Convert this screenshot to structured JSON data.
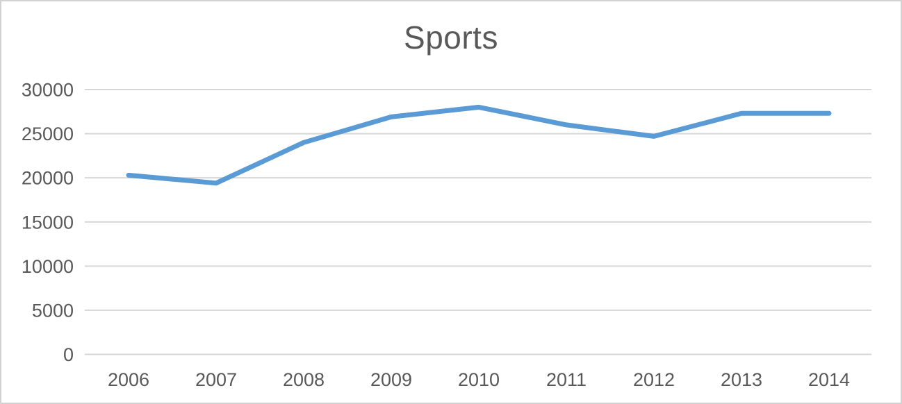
{
  "window": {
    "background": "#ffffff",
    "border_color": "#d2d2d2"
  },
  "chart_data": {
    "type": "line",
    "title": "Sports",
    "categories": [
      "2006",
      "2007",
      "2008",
      "2009",
      "2010",
      "2011",
      "2012",
      "2013",
      "2014"
    ],
    "series": [
      {
        "name": "Sports",
        "values": [
          20300,
          19400,
          24000,
          26900,
          28000,
          26000,
          24700,
          27300,
          27300
        ]
      }
    ],
    "xlabel": "",
    "ylabel": "",
    "ylim": [
      0,
      30000
    ],
    "yticks": [
      0,
      5000,
      10000,
      15000,
      20000,
      25000,
      30000
    ],
    "grid": true,
    "legend": "none",
    "colors": {
      "line": "#5B9BD5",
      "gridline": "#D6D6D6",
      "axis_text": "#595959",
      "title_text": "#595959"
    }
  }
}
